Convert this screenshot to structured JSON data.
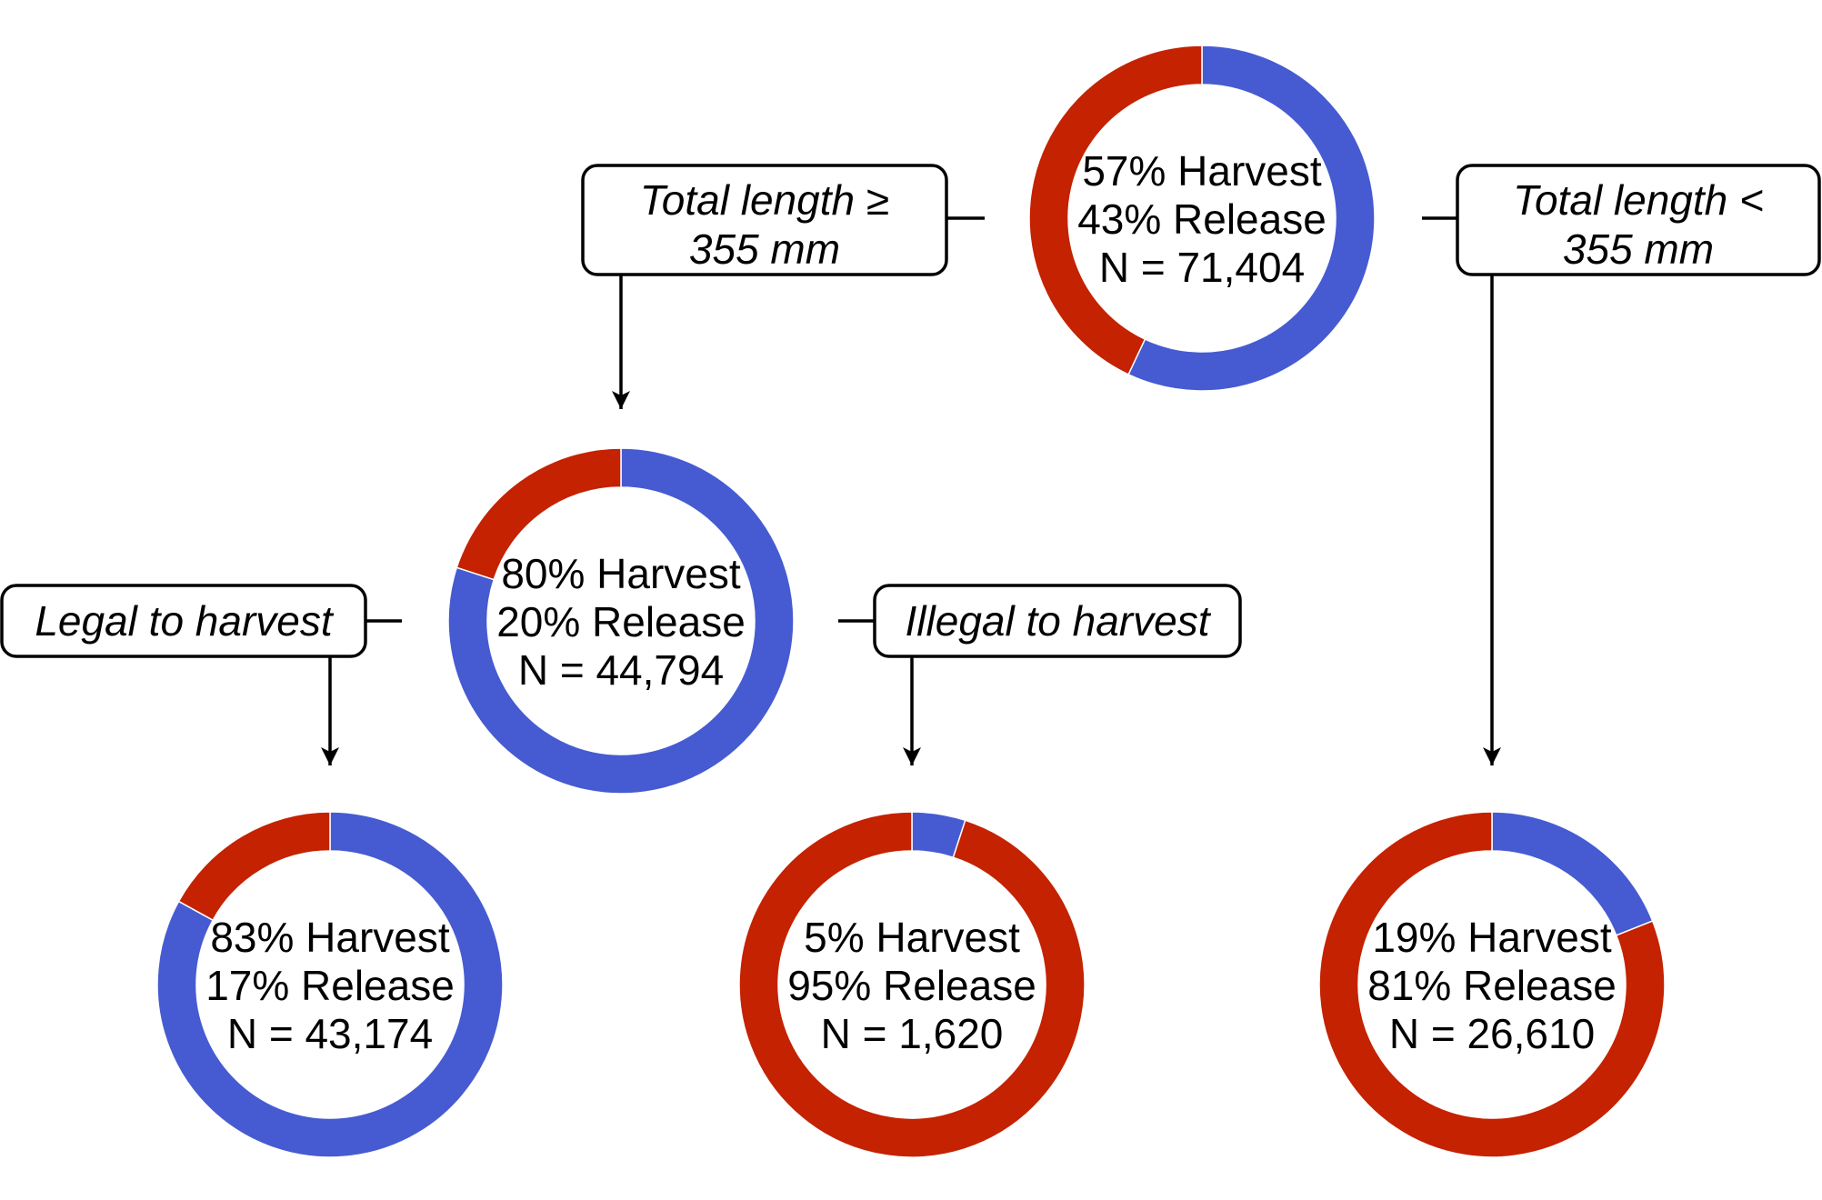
{
  "colors": {
    "harvest": "#465BD1",
    "release": "#C42200"
  },
  "nodes": [
    {
      "id": "root",
      "harvest_pct": 57,
      "release_pct": 43,
      "lines": [
        "57% Harvest",
        "43% Release",
        "N = 71,404"
      ]
    },
    {
      "id": "long",
      "harvest_pct": 80,
      "release_pct": 20,
      "lines": [
        "80% Harvest",
        "20% Release",
        "N = 44,794"
      ]
    },
    {
      "id": "short",
      "harvest_pct": 19,
      "release_pct": 81,
      "lines": [
        "19% Harvest",
        "81% Release",
        "N = 26,610"
      ]
    },
    {
      "id": "legal",
      "harvest_pct": 83,
      "release_pct": 17,
      "lines": [
        "83% Harvest",
        "17% Release",
        "N = 43,174"
      ]
    },
    {
      "id": "illegal",
      "harvest_pct": 5,
      "release_pct": 95,
      "lines": [
        "5% Harvest",
        "95% Release",
        "N = 1,620"
      ]
    }
  ],
  "conditions": {
    "long": [
      "Total length ≥",
      "355 mm"
    ],
    "short": [
      "Total length <",
      "355 mm"
    ],
    "legal": [
      "Legal to harvest"
    ],
    "illegal": [
      "Illegal to harvest"
    ]
  }
}
